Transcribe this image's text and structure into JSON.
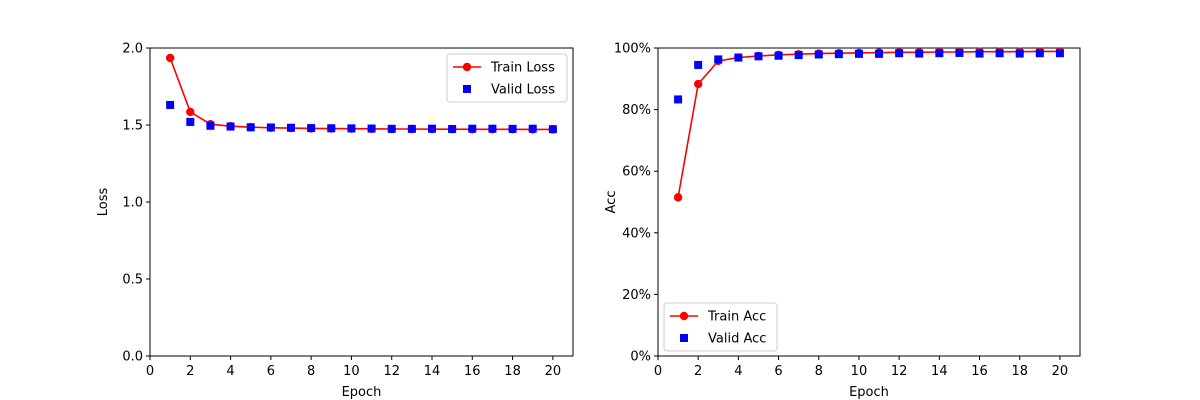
{
  "chart_data": [
    {
      "type": "line",
      "xlabel": "Epoch",
      "ylabel": "Loss",
      "xlim": [
        0,
        21
      ],
      "ylim": [
        0.0,
        2.0
      ],
      "xticks": [
        0,
        2,
        4,
        6,
        8,
        10,
        12,
        14,
        16,
        18,
        20
      ],
      "xtick_labels": [
        "0",
        "2",
        "4",
        "6",
        "8",
        "10",
        "12",
        "14",
        "16",
        "18",
        "20"
      ],
      "yticks": [
        0.0,
        0.5,
        1.0,
        1.5,
        2.0
      ],
      "ytick_labels": [
        "0.0",
        "0.5",
        "1.0",
        "1.5",
        "2.0"
      ],
      "grid": false,
      "legend_position": "top-right",
      "x": [
        1,
        2,
        3,
        4,
        5,
        6,
        7,
        8,
        9,
        10,
        11,
        12,
        13,
        14,
        15,
        16,
        17,
        18,
        19,
        20
      ],
      "series": [
        {
          "name": "Train Loss",
          "style": "line-circle",
          "color": "#ff0000",
          "values": [
            1.935,
            1.585,
            1.505,
            1.492,
            1.486,
            1.482,
            1.48,
            1.478,
            1.477,
            1.476,
            1.475,
            1.474,
            1.474,
            1.473,
            1.473,
            1.472,
            1.472,
            1.472,
            1.471,
            1.471
          ]
        },
        {
          "name": "Valid Loss",
          "style": "square",
          "color": "#0000ff",
          "values": [
            1.63,
            1.52,
            1.495,
            1.49,
            1.485,
            1.484,
            1.482,
            1.48,
            1.479,
            1.478,
            1.477,
            1.475,
            1.475,
            1.476,
            1.474,
            1.476,
            1.476,
            1.475,
            1.476,
            1.473
          ]
        }
      ]
    },
    {
      "type": "line",
      "xlabel": "Epoch",
      "ylabel": "Acc",
      "xlim": [
        0,
        21
      ],
      "ylim": [
        0,
        100
      ],
      "xticks": [
        0,
        2,
        4,
        6,
        8,
        10,
        12,
        14,
        16,
        18,
        20
      ],
      "xtick_labels": [
        "0",
        "2",
        "4",
        "6",
        "8",
        "10",
        "12",
        "14",
        "16",
        "18",
        "20"
      ],
      "yticks": [
        0,
        20,
        40,
        60,
        80,
        100
      ],
      "ytick_labels": [
        "0%",
        "20%",
        "40%",
        "60%",
        "80%",
        "100%"
      ],
      "grid": false,
      "legend_position": "bottom-left",
      "x": [
        1,
        2,
        3,
        4,
        5,
        6,
        7,
        8,
        9,
        10,
        11,
        12,
        13,
        14,
        15,
        16,
        17,
        18,
        19,
        20
      ],
      "series": [
        {
          "name": "Train Acc",
          "style": "line-circle",
          "color": "#ff0000",
          "values": [
            51.5,
            88.3,
            95.8,
            96.9,
            97.4,
            97.8,
            98.0,
            98.2,
            98.3,
            98.4,
            98.5,
            98.6,
            98.6,
            98.7,
            98.7,
            98.8,
            98.8,
            98.8,
            98.9,
            98.9
          ]
        },
        {
          "name": "Valid Acc",
          "style": "square",
          "color": "#0000ff",
          "values": [
            83.3,
            94.5,
            96.3,
            96.9,
            97.3,
            97.5,
            97.7,
            97.9,
            98.0,
            98.1,
            98.1,
            98.3,
            98.2,
            98.3,
            98.4,
            98.2,
            98.3,
            98.2,
            98.3,
            98.3
          ]
        }
      ]
    }
  ]
}
